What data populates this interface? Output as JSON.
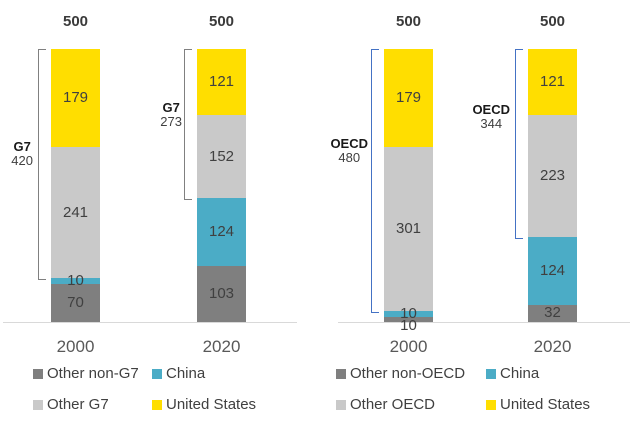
{
  "page": {
    "background": "#ffffff"
  },
  "colors": {
    "axis_line": "#d9d9d9",
    "segment_label": "#404040",
    "total_label": "#3a3a3a",
    "category_label": "#595959"
  },
  "chart_data": [
    {
      "type": "bar",
      "stacked": true,
      "title": "",
      "xlabel": "",
      "ylabel": "",
      "ylim": [
        0,
        500
      ],
      "grid": false,
      "legend_position": "bottom",
      "categories": [
        "2000",
        "2020"
      ],
      "totals": [
        "500",
        "500"
      ],
      "series": [
        {
          "name": "Other non-G7",
          "color": "#7f7f7f",
          "values": [
            70,
            103
          ]
        },
        {
          "name": "China",
          "color": "#4bacc6",
          "values": [
            10,
            124
          ]
        },
        {
          "name": "Other G7",
          "color": "#c9c9c9",
          "values": [
            241,
            152
          ]
        },
        {
          "name": "United States",
          "color": "#ffde00",
          "values": [
            179,
            121
          ]
        }
      ],
      "brackets": [
        {
          "bar": 0,
          "label": "G7",
          "value": "420",
          "covers_top_series": 2
        },
        {
          "bar": 1,
          "label": "G7",
          "value": "273",
          "covers_top_series": 2
        }
      ],
      "bracket_color": "#808080",
      "legend_rows": [
        [
          "Other non-G7",
          "China"
        ],
        [
          "Other G7",
          "United States"
        ]
      ]
    },
    {
      "type": "bar",
      "stacked": true,
      "title": "",
      "xlabel": "",
      "ylabel": "",
      "ylim": [
        0,
        500
      ],
      "grid": false,
      "legend_position": "bottom",
      "categories": [
        "2000",
        "2020"
      ],
      "totals": [
        "500",
        "500"
      ],
      "series": [
        {
          "name": "Other non-OECD",
          "color": "#7f7f7f",
          "values": [
            10,
            32
          ]
        },
        {
          "name": "China",
          "color": "#4bacc6",
          "values": [
            10,
            124
          ]
        },
        {
          "name": "Other OECD",
          "color": "#c9c9c9",
          "values": [
            301,
            223
          ]
        },
        {
          "name": "United States",
          "color": "#ffde00",
          "values": [
            179,
            121
          ]
        }
      ],
      "brackets": [
        {
          "bar": 0,
          "label": "OECD",
          "value": "480",
          "covers_top_series": 2
        },
        {
          "bar": 1,
          "label": "OECD",
          "value": "344",
          "covers_top_series": 2
        }
      ],
      "bracket_color": "#4472c4",
      "legend_rows": [
        [
          "Other non-OECD",
          "China"
        ],
        [
          "Other OECD",
          "United States"
        ]
      ]
    }
  ]
}
